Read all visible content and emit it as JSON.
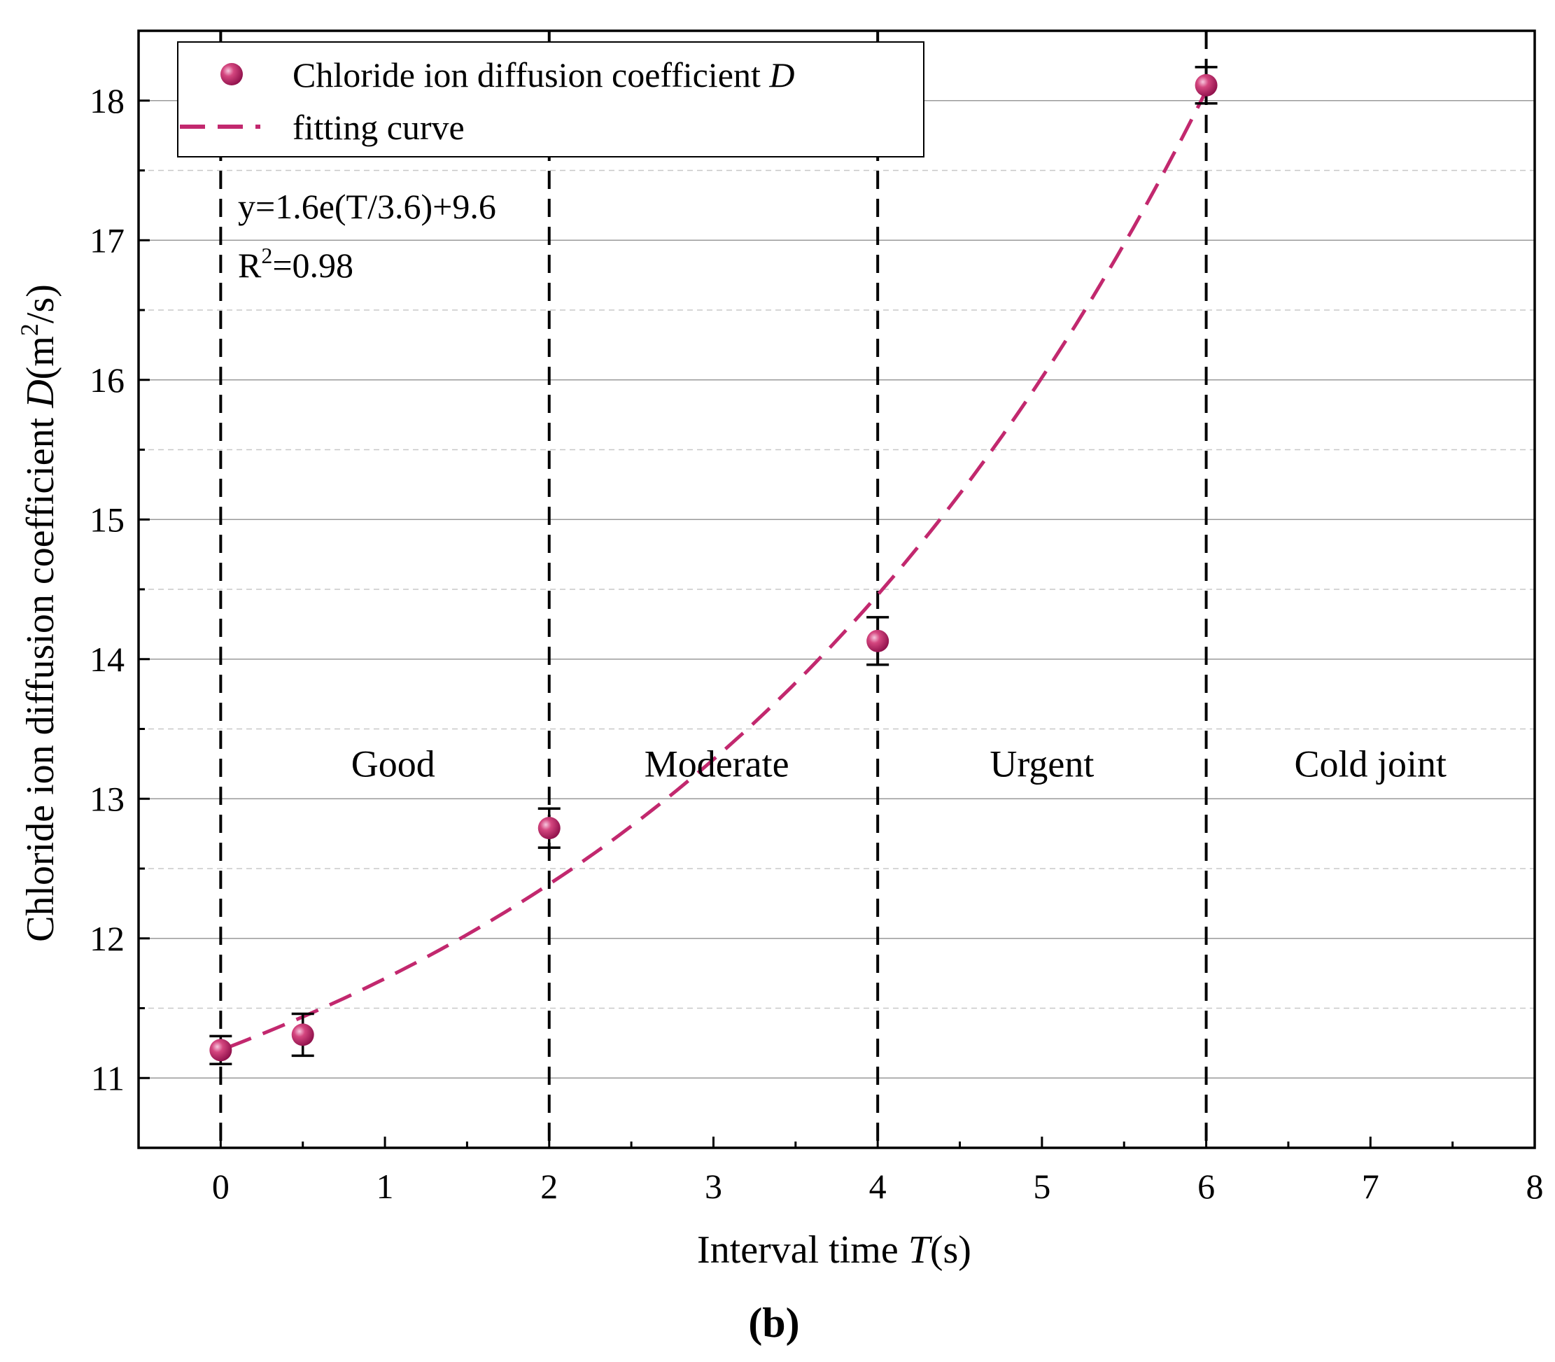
{
  "chart_data": {
    "type": "scatter",
    "panel_label": "(b)",
    "xlabel_prefix": "Interval time ",
    "xlabel_var": "T",
    "xlabel_suffix": "(s)",
    "ylabel_prefix": "Chloride ion diffusion coefficient ",
    "ylabel_var": "D",
    "ylabel_unit_open": "(m",
    "ylabel_unit_sup": "2",
    "ylabel_unit_close": "/s)",
    "xlim": [
      -0.5,
      8
    ],
    "ylim": [
      10.5,
      18.5
    ],
    "x_ticks": [
      0,
      1,
      2,
      3,
      4,
      5,
      6,
      7,
      8
    ],
    "x_minor_ticks": [
      -0.5,
      0.5,
      1.5,
      2.5,
      3.5,
      4.5,
      5.5,
      6.5,
      7.5
    ],
    "y_ticks": [
      11,
      12,
      13,
      14,
      15,
      16,
      17,
      18
    ],
    "y_minor_ticks": [
      11.5,
      12.5,
      13.5,
      14.5,
      15.5,
      16.5,
      17.5
    ],
    "grid": "horizontal",
    "series": [
      {
        "name": "Chloride ion diffusion coefficient D",
        "kind": "scatter-errorbar",
        "color": "#c2286e",
        "x": [
          0,
          0.5,
          2,
          4,
          6
        ],
        "y": [
          11.2,
          11.31,
          12.79,
          14.13,
          18.11
        ],
        "err": [
          0.1,
          0.15,
          0.14,
          0.17,
          0.13
        ]
      },
      {
        "name": "fitting curve",
        "kind": "dashed-line",
        "color": "#c2286e",
        "equation": {
          "a": 1.6,
          "b": 3.6,
          "c": 9.6
        },
        "x_range": [
          0.05,
          6
        ]
      }
    ],
    "legend": {
      "position": "top-left",
      "marker_label_prefix": "Chloride ion diffusion coefficient ",
      "marker_label_var": "D",
      "line_label": "fitting curve"
    },
    "annotation": {
      "equation": "y=1.6e(T/3.6)+9.6",
      "r2_prefix": "R",
      "r2_sup": "2",
      "r2_value": "=0.98"
    },
    "vertical_dashed_lines_at": [
      0,
      2,
      4,
      6
    ],
    "regions": [
      {
        "label": "Good",
        "x": 1.05
      },
      {
        "label": "Moderate",
        "x": 3.02
      },
      {
        "label": "Urgent",
        "x": 5.0
      },
      {
        "label": "Cold joint",
        "x": 7.0
      }
    ],
    "region_label_y": 13.25
  }
}
